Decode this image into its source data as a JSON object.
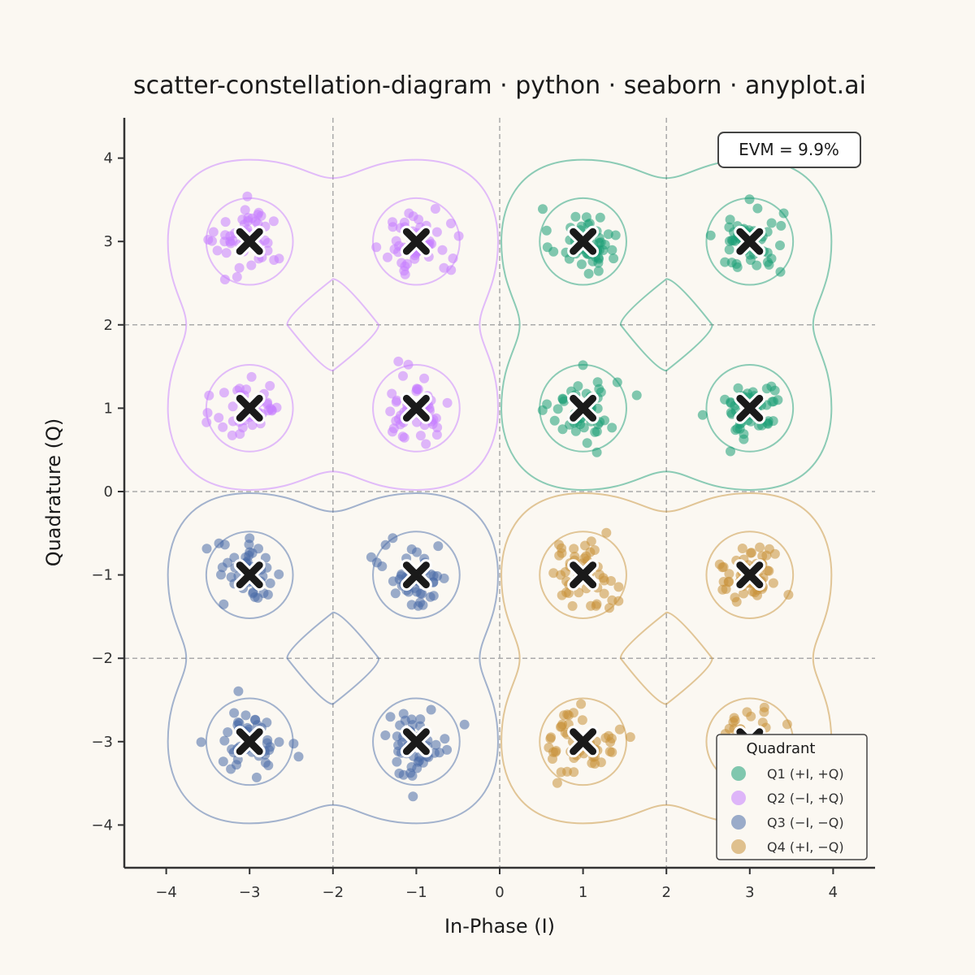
{
  "chart_data": {
    "type": "scatter",
    "title": "scatter-constellation-diagram · python · seaborn · anyplot.ai",
    "xlabel": "In-Phase (I)",
    "ylabel": "Quadrature (Q)",
    "xlim": [
      -4.5,
      4.5
    ],
    "ylim": [
      -4.5,
      4.5
    ],
    "xticks": [
      -4,
      -3,
      -2,
      -1,
      0,
      1,
      2,
      3,
      4
    ],
    "yticks": [
      -4,
      -3,
      -2,
      -1,
      0,
      1,
      2,
      3,
      4
    ],
    "xtick_labels": [
      "−4",
      "−3",
      "−2",
      "−1",
      "0",
      "1",
      "2",
      "3",
      "4"
    ],
    "ytick_labels": [
      "−4",
      "−3",
      "−2",
      "−1",
      "0",
      "1",
      "2",
      "3",
      "4"
    ],
    "decision_boundaries": [
      -2,
      0,
      2
    ],
    "annotation": "EVM = 9.9%",
    "legend": {
      "title": "Quadrant",
      "placement": "bottom-right"
    },
    "points_per_symbol": 50,
    "noise_std": 0.2,
    "ideal_points": [
      [
        -3,
        3
      ],
      [
        -1,
        3
      ],
      [
        1,
        3
      ],
      [
        3,
        3
      ],
      [
        -3,
        1
      ],
      [
        -1,
        1
      ],
      [
        1,
        1
      ],
      [
        3,
        1
      ],
      [
        -3,
        -1
      ],
      [
        -1,
        -1
      ],
      [
        1,
        -1
      ],
      [
        3,
        -1
      ],
      [
        -3,
        -3
      ],
      [
        -1,
        -3
      ],
      [
        1,
        -3
      ],
      [
        3,
        -3
      ]
    ],
    "series": [
      {
        "name": "Q1 (+I, +Q)",
        "color": "#1B9E77",
        "centers": [
          [
            1,
            3
          ],
          [
            3,
            3
          ],
          [
            1,
            1
          ],
          [
            3,
            1
          ]
        ]
      },
      {
        "name": "Q2 (−I, +Q)",
        "color": "#C77DFF",
        "centers": [
          [
            -3,
            3
          ],
          [
            -1,
            3
          ],
          [
            -3,
            1
          ],
          [
            -1,
            1
          ]
        ]
      },
      {
        "name": "Q3 (−I, −Q)",
        "color": "#4A6BA8",
        "centers": [
          [
            -3,
            -1
          ],
          [
            -1,
            -1
          ],
          [
            -3,
            -3
          ],
          [
            -1,
            -3
          ]
        ]
      },
      {
        "name": "Q4 (+I, −Q)",
        "color": "#C8923A",
        "centers": [
          [
            1,
            -1
          ],
          [
            3,
            -1
          ],
          [
            1,
            -3
          ],
          [
            3,
            -3
          ]
        ]
      }
    ]
  }
}
